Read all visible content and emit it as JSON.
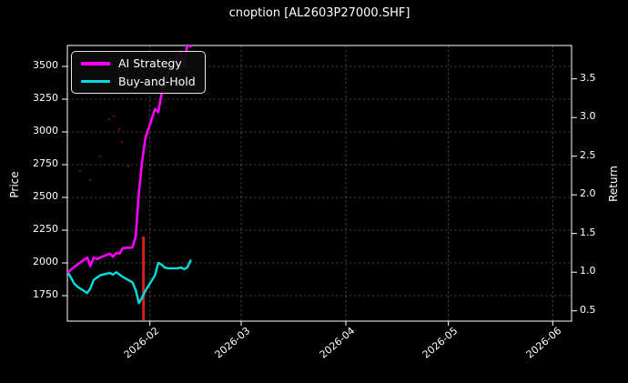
{
  "title": "cnoption [AL2603P27000.SHF]",
  "axes": {
    "left": {
      "label": "Price",
      "tick_labels": [
        "3500",
        "3250",
        "3000",
        "2750",
        "2500",
        "2250",
        "2000",
        "1750"
      ]
    },
    "right": {
      "label": "Return",
      "tick_labels": [
        "3.5",
        "3.0",
        "2.5",
        "2.0",
        "1.5",
        "1.0",
        "0.5"
      ]
    },
    "bottom": {
      "tick_labels": [
        "2026-02",
        "2026-03",
        "2026-04",
        "2026-05",
        "2026-06"
      ]
    }
  },
  "legend": {
    "items": [
      {
        "label": "AI Strategy",
        "color": "#ff00ff"
      },
      {
        "label": "Buy-and-Hold",
        "color": "#00e0e0"
      }
    ]
  },
  "chart_data": {
    "type": "line",
    "title": "cnoption [AL2603P27000.SHF]",
    "ylabel_left": "Price",
    "ylabel_right": "Return",
    "background": "#000000",
    "grid": true,
    "legend_position": "upper left",
    "price_ticks": [
      3500,
      3250,
      3000,
      2750,
      2500,
      2250,
      2000,
      1750
    ],
    "return_ticks": [
      3.5,
      3.0,
      2.5,
      2.0,
      1.5,
      1.0,
      0.5
    ],
    "x_tick_labels": [
      "2026-02",
      "2026-03",
      "2026-04",
      "2026-05",
      "2026-06"
    ],
    "x_dates": [
      "2026-01-06",
      "2026-01-07",
      "2026-01-08",
      "2026-01-09",
      "2026-01-12",
      "2026-01-13",
      "2026-01-14",
      "2026-01-15",
      "2026-01-16",
      "2026-01-19",
      "2026-01-20",
      "2026-01-21",
      "2026-01-22",
      "2026-01-23",
      "2026-01-26",
      "2026-01-27",
      "2026-01-28",
      "2026-01-29",
      "2026-01-30",
      "2026-02-02",
      "2026-02-03",
      "2026-02-04",
      "2026-02-05",
      "2026-02-06",
      "2026-02-09",
      "2026-02-10",
      "2026-02-11",
      "2026-02-12",
      "2026-02-13"
    ],
    "series": [
      {
        "name": "AI Strategy",
        "color": "#ff00ff",
        "axis": "return",
        "values": [
          1.0,
          1.03,
          1.07,
          1.1,
          1.19,
          1.08,
          1.19,
          1.17,
          1.19,
          1.24,
          1.2,
          1.25,
          1.24,
          1.31,
          1.32,
          1.46,
          2.03,
          2.43,
          2.73,
          3.11,
          3.07,
          3.3,
          3.43,
          3.59,
          3.79,
          3.85,
          3.66,
          3.94,
          3.92
        ]
      },
      {
        "name": "Buy-and-Hold",
        "color": "#00e0e0",
        "axis": "return",
        "values": [
          1.0,
          0.93,
          0.85,
          0.81,
          0.73,
          0.79,
          0.9,
          0.93,
          0.96,
          0.99,
          0.97,
          1.0,
          0.97,
          0.94,
          0.87,
          0.77,
          0.6,
          0.67,
          0.76,
          0.96,
          1.12,
          1.1,
          1.06,
          1.05,
          1.05,
          1.06,
          1.04,
          1.06,
          1.15
        ]
      }
    ],
    "event_vline": {
      "date": "2026-01-29",
      "color": "#cc2222"
    }
  }
}
